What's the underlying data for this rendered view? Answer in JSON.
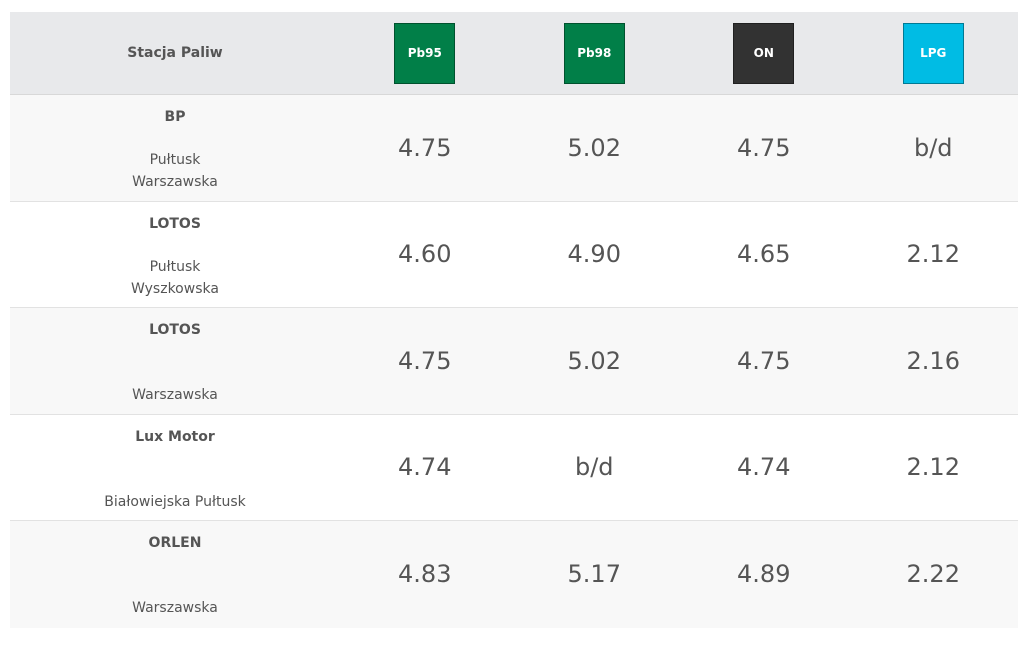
{
  "header": {
    "station_label": "Stacja Paliw",
    "fuels": [
      {
        "label": "Pb95",
        "color": "#017f48"
      },
      {
        "label": "Pb98",
        "color": "#017f48"
      },
      {
        "label": "ON",
        "color": "#323232"
      },
      {
        "label": "LPG",
        "color": "#00bce4"
      }
    ]
  },
  "rows": [
    {
      "name": "BP",
      "address_lines": [
        "Pułtusk",
        "Warszawska"
      ],
      "prices": [
        "4.75",
        "5.02",
        "4.75",
        "b/d"
      ]
    },
    {
      "name": "LOTOS",
      "address_lines": [
        "Pułtusk",
        "Wyszkowska"
      ],
      "prices": [
        "4.60",
        "4.90",
        "4.65",
        "2.12"
      ]
    },
    {
      "name": "LOTOS",
      "address_lines": [
        "Warszawska"
      ],
      "prices": [
        "4.75",
        "5.02",
        "4.75",
        "2.16"
      ]
    },
    {
      "name": "Lux Motor",
      "address_lines": [
        "Białowiejska Pułtusk"
      ],
      "prices": [
        "4.74",
        "b/d",
        "4.74",
        "2.12"
      ]
    },
    {
      "name": "ORLEN",
      "address_lines": [
        "Warszawska"
      ],
      "prices": [
        "4.83",
        "5.17",
        "4.89",
        "2.22"
      ]
    }
  ]
}
